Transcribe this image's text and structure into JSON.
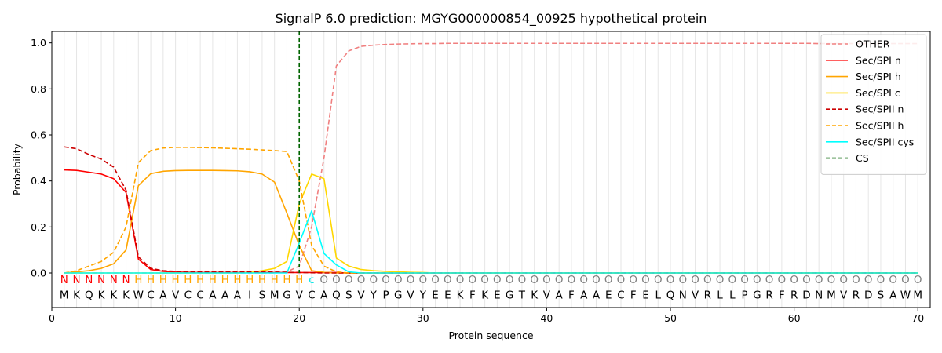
{
  "chart_data": {
    "type": "line",
    "title": "SignalP 6.0 prediction: MGYG000000854_00925 hypothetical protein",
    "xlabel": "Protein sequence",
    "ylabel": "Probability",
    "xlim": [
      0,
      71
    ],
    "ylim": [
      -0.15,
      1.05
    ],
    "xticks": [
      0,
      10,
      20,
      30,
      40,
      50,
      60,
      70
    ],
    "yticks": [
      0.0,
      0.2,
      0.4,
      0.6,
      0.8,
      1.0
    ],
    "sequence": [
      "M",
      "K",
      "Q",
      "K",
      "K",
      "K",
      "W",
      "C",
      "A",
      "V",
      "C",
      "C",
      "A",
      "A",
      "A",
      "I",
      "S",
      "M",
      "G",
      "V",
      "C",
      "A",
      "Q",
      "S",
      "V",
      "Y",
      "P",
      "G",
      "V",
      "Y",
      "E",
      "E",
      "K",
      "F",
      "K",
      "E",
      "G",
      "T",
      "K",
      "V",
      "A",
      "F",
      "A",
      "A",
      "E",
      "C",
      "F",
      "E",
      "L",
      "Q",
      "N",
      "V",
      "R",
      "L",
      "L",
      "P",
      "G",
      "R",
      "F",
      "R",
      "D",
      "N",
      "M",
      "V",
      "R",
      "D",
      "S",
      "A",
      "W",
      "M"
    ],
    "region_labels": [
      "N",
      "N",
      "N",
      "N",
      "N",
      "N",
      "H",
      "H",
      "H",
      "H",
      "H",
      "H",
      "H",
      "H",
      "H",
      "H",
      "H",
      "H",
      "H",
      "H",
      "c",
      "O",
      "O",
      "O",
      "O",
      "O",
      "O",
      "O",
      "O",
      "O",
      "O",
      "O",
      "O",
      "O",
      "O",
      "O",
      "O",
      "O",
      "O",
      "O",
      "O",
      "O",
      "O",
      "O",
      "O",
      "O",
      "O",
      "O",
      "O",
      "O",
      "O",
      "O",
      "O",
      "O",
      "O",
      "O",
      "O",
      "O",
      "O",
      "O",
      "O",
      "O",
      "O",
      "O",
      "O",
      "O",
      "O",
      "O",
      "O",
      "O"
    ],
    "region_colors": {
      "N": "#ff0000",
      "H": "#ffa500",
      "c": "#00e5e5",
      "O": "#808080"
    },
    "cleavage_site": 20,
    "legend_position": "top-right",
    "grid": "vertical lines at each residue",
    "series": [
      {
        "name": "OTHER",
        "color": "#f08080",
        "dash": true,
        "values": [
          0.0,
          0.0,
          0.0,
          0.0,
          0.0,
          0.0,
          0.0,
          0.0,
          0.0,
          0.0,
          0.0,
          0.0,
          0.0,
          0.0,
          0.0,
          0.0,
          0.0,
          0.0,
          0.005,
          0.03,
          0.2,
          0.5,
          0.9,
          0.965,
          0.985,
          0.99,
          0.993,
          0.995,
          0.996,
          0.997,
          0.997,
          0.998,
          0.998,
          0.998,
          0.998,
          0.998,
          0.998,
          0.998,
          0.998,
          0.998,
          0.998,
          0.998,
          0.998,
          0.998,
          0.998,
          0.998,
          0.998,
          0.998,
          0.998,
          0.998,
          0.998,
          0.998,
          0.998,
          0.998,
          0.998,
          0.998,
          0.998,
          0.998,
          0.998,
          0.998,
          0.998,
          0.997,
          0.997,
          0.997,
          0.997,
          0.997,
          0.997,
          0.997,
          0.997,
          0.997
        ]
      },
      {
        "name": "Sec/SPI n",
        "color": "#ff0000",
        "dash": false,
        "values": [
          0.448,
          0.446,
          0.438,
          0.43,
          0.41,
          0.35,
          0.06,
          0.015,
          0.007,
          0.004,
          0.003,
          0.002,
          0.002,
          0.002,
          0.002,
          0.002,
          0.002,
          0.002,
          0.002,
          0.002,
          0.002,
          0.002,
          0.002,
          0.0,
          0.0,
          0.0,
          0.0,
          0.0,
          0.0,
          0.0,
          0.0,
          0.0,
          0.0,
          0.0,
          0.0,
          0.0,
          0.0,
          0.0,
          0.0,
          0.0,
          0.0,
          0.0,
          0.0,
          0.0,
          0.0,
          0.0,
          0.0,
          0.0,
          0.0,
          0.0,
          0.0,
          0.0,
          0.0,
          0.0,
          0.0,
          0.0,
          0.0,
          0.0,
          0.0,
          0.0,
          0.0,
          0.0,
          0.0,
          0.0,
          0.0,
          0.0,
          0.0,
          0.0,
          0.0,
          0.0
        ]
      },
      {
        "name": "Sec/SPI h",
        "color": "#ffa500",
        "dash": false,
        "values": [
          0.0,
          0.005,
          0.01,
          0.02,
          0.04,
          0.1,
          0.38,
          0.432,
          0.442,
          0.445,
          0.446,
          0.446,
          0.446,
          0.445,
          0.444,
          0.44,
          0.43,
          0.395,
          0.26,
          0.12,
          0.01,
          0.003,
          0.0,
          0.0,
          0.0,
          0.0,
          0.0,
          0.0,
          0.0,
          0.0,
          0.0,
          0.0,
          0.0,
          0.0,
          0.0,
          0.0,
          0.0,
          0.0,
          0.0,
          0.0,
          0.0,
          0.0,
          0.0,
          0.0,
          0.0,
          0.0,
          0.0,
          0.0,
          0.0,
          0.0,
          0.0,
          0.0,
          0.0,
          0.0,
          0.0,
          0.0,
          0.0,
          0.0,
          0.0,
          0.0,
          0.0,
          0.0,
          0.0,
          0.0,
          0.0,
          0.0,
          0.0,
          0.0,
          0.0,
          0.0
        ]
      },
      {
        "name": "Sec/SPI c",
        "color": "#ffd700",
        "dash": false,
        "values": [
          0.0,
          0.0,
          0.0,
          0.0,
          0.0,
          0.0,
          0.0,
          0.0,
          0.0,
          0.0,
          0.0,
          0.0,
          0.0,
          0.0,
          0.0,
          0.002,
          0.01,
          0.02,
          0.05,
          0.3,
          0.43,
          0.41,
          0.065,
          0.03,
          0.015,
          0.01,
          0.007,
          0.005,
          0.003,
          0.002,
          0.0,
          0.0,
          0.0,
          0.0,
          0.0,
          0.0,
          0.0,
          0.0,
          0.0,
          0.0,
          0.0,
          0.0,
          0.0,
          0.0,
          0.0,
          0.0,
          0.0,
          0.0,
          0.0,
          0.0,
          0.0,
          0.0,
          0.0,
          0.0,
          0.0,
          0.0,
          0.0,
          0.0,
          0.0,
          0.0,
          0.0,
          0.0,
          0.0,
          0.0,
          0.0,
          0.0,
          0.0,
          0.0,
          0.0,
          0.0
        ]
      },
      {
        "name": "Sec/SPII n",
        "color": "#cc0000",
        "dash": true,
        "values": [
          0.548,
          0.54,
          0.515,
          0.495,
          0.46,
          0.36,
          0.07,
          0.02,
          0.01,
          0.007,
          0.005,
          0.004,
          0.004,
          0.004,
          0.004,
          0.004,
          0.004,
          0.004,
          0.003,
          0.002,
          0.001,
          0.0,
          0.0,
          0.0,
          0.0,
          0.0,
          0.0,
          0.0,
          0.0,
          0.0,
          0.0,
          0.0,
          0.0,
          0.0,
          0.0,
          0.0,
          0.0,
          0.0,
          0.0,
          0.0,
          0.0,
          0.0,
          0.0,
          0.0,
          0.0,
          0.0,
          0.0,
          0.0,
          0.0,
          0.0,
          0.0,
          0.0,
          0.0,
          0.0,
          0.0,
          0.0,
          0.0,
          0.0,
          0.0,
          0.0,
          0.0,
          0.0,
          0.0,
          0.0,
          0.0,
          0.0,
          0.0,
          0.0,
          0.0,
          0.0
        ]
      },
      {
        "name": "Sec/SPII h",
        "color": "#ffa500",
        "dash": true,
        "values": [
          0.0,
          0.01,
          0.03,
          0.05,
          0.09,
          0.2,
          0.48,
          0.532,
          0.543,
          0.546,
          0.546,
          0.545,
          0.544,
          0.542,
          0.54,
          0.538,
          0.535,
          0.532,
          0.528,
          0.4,
          0.12,
          0.03,
          0.005,
          0.0,
          0.0,
          0.0,
          0.0,
          0.0,
          0.0,
          0.0,
          0.0,
          0.0,
          0.0,
          0.0,
          0.0,
          0.0,
          0.0,
          0.0,
          0.0,
          0.0,
          0.0,
          0.0,
          0.0,
          0.0,
          0.0,
          0.0,
          0.0,
          0.0,
          0.0,
          0.0,
          0.0,
          0.0,
          0.0,
          0.0,
          0.0,
          0.0,
          0.0,
          0.0,
          0.0,
          0.0,
          0.0,
          0.0,
          0.0,
          0.0,
          0.0,
          0.0,
          0.0,
          0.0,
          0.0,
          0.0
        ]
      },
      {
        "name": "Sec/SPII cys",
        "color": "#00ffff",
        "dash": false,
        "values": [
          0.0,
          0.0,
          0.0,
          0.0,
          0.0,
          0.0,
          0.0,
          0.0,
          0.0,
          0.0,
          0.0,
          0.0,
          0.0,
          0.0,
          0.0,
          0.0,
          0.0,
          0.0,
          0.0,
          0.13,
          0.27,
          0.085,
          0.035,
          0.005,
          0.0,
          0.0,
          0.0,
          0.0,
          0.0,
          0.0,
          0.0,
          0.0,
          0.0,
          0.0,
          0.0,
          0.0,
          0.0,
          0.0,
          0.0,
          0.0,
          0.0,
          0.0,
          0.0,
          0.0,
          0.0,
          0.0,
          0.0,
          0.0,
          0.0,
          0.0,
          0.0,
          0.0,
          0.0,
          0.0,
          0.0,
          0.0,
          0.0,
          0.0,
          0.0,
          0.0,
          0.0,
          0.0,
          0.0,
          0.0,
          0.0,
          0.0,
          0.0,
          0.0,
          0.0,
          0.0
        ]
      },
      {
        "name": "CS",
        "color": "#006400",
        "dash": true,
        "vertical_at": 20
      }
    ]
  }
}
